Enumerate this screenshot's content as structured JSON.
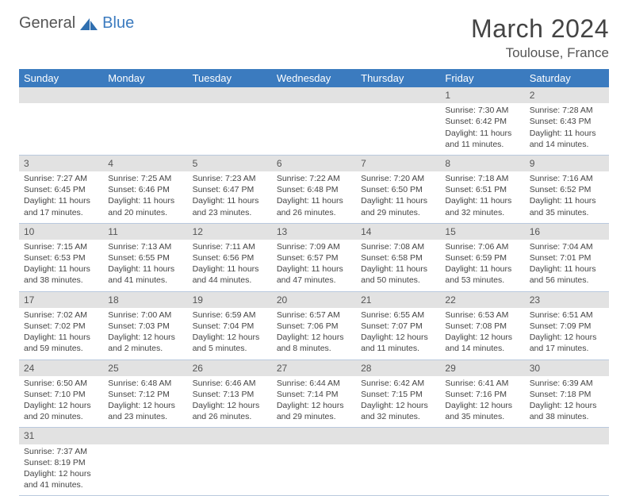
{
  "logo": {
    "text1": "General",
    "text2": "Blue"
  },
  "title": "March 2024",
  "location": "Toulouse, France",
  "day_headers": [
    "Sunday",
    "Monday",
    "Tuesday",
    "Wednesday",
    "Thursday",
    "Friday",
    "Saturday"
  ],
  "colors": {
    "header_bg": "#3b7bbf",
    "header_text": "#ffffff",
    "daynum_bg": "#e2e2e2",
    "row_border": "#b9c9de",
    "text": "#444",
    "page_bg": "#ffffff"
  },
  "typography": {
    "title_fontsize": 32,
    "location_fontsize": 17,
    "header_fontsize": 13,
    "daynum_fontsize": 12,
    "cell_fontsize": 10.5
  },
  "weeks": [
    [
      null,
      null,
      null,
      null,
      null,
      {
        "num": "1",
        "sunrise": "Sunrise: 7:30 AM",
        "sunset": "Sunset: 6:42 PM",
        "dl1": "Daylight: 11 hours",
        "dl2": "and 11 minutes."
      },
      {
        "num": "2",
        "sunrise": "Sunrise: 7:28 AM",
        "sunset": "Sunset: 6:43 PM",
        "dl1": "Daylight: 11 hours",
        "dl2": "and 14 minutes."
      }
    ],
    [
      {
        "num": "3",
        "sunrise": "Sunrise: 7:27 AM",
        "sunset": "Sunset: 6:45 PM",
        "dl1": "Daylight: 11 hours",
        "dl2": "and 17 minutes."
      },
      {
        "num": "4",
        "sunrise": "Sunrise: 7:25 AM",
        "sunset": "Sunset: 6:46 PM",
        "dl1": "Daylight: 11 hours",
        "dl2": "and 20 minutes."
      },
      {
        "num": "5",
        "sunrise": "Sunrise: 7:23 AM",
        "sunset": "Sunset: 6:47 PM",
        "dl1": "Daylight: 11 hours",
        "dl2": "and 23 minutes."
      },
      {
        "num": "6",
        "sunrise": "Sunrise: 7:22 AM",
        "sunset": "Sunset: 6:48 PM",
        "dl1": "Daylight: 11 hours",
        "dl2": "and 26 minutes."
      },
      {
        "num": "7",
        "sunrise": "Sunrise: 7:20 AM",
        "sunset": "Sunset: 6:50 PM",
        "dl1": "Daylight: 11 hours",
        "dl2": "and 29 minutes."
      },
      {
        "num": "8",
        "sunrise": "Sunrise: 7:18 AM",
        "sunset": "Sunset: 6:51 PM",
        "dl1": "Daylight: 11 hours",
        "dl2": "and 32 minutes."
      },
      {
        "num": "9",
        "sunrise": "Sunrise: 7:16 AM",
        "sunset": "Sunset: 6:52 PM",
        "dl1": "Daylight: 11 hours",
        "dl2": "and 35 minutes."
      }
    ],
    [
      {
        "num": "10",
        "sunrise": "Sunrise: 7:15 AM",
        "sunset": "Sunset: 6:53 PM",
        "dl1": "Daylight: 11 hours",
        "dl2": "and 38 minutes."
      },
      {
        "num": "11",
        "sunrise": "Sunrise: 7:13 AM",
        "sunset": "Sunset: 6:55 PM",
        "dl1": "Daylight: 11 hours",
        "dl2": "and 41 minutes."
      },
      {
        "num": "12",
        "sunrise": "Sunrise: 7:11 AM",
        "sunset": "Sunset: 6:56 PM",
        "dl1": "Daylight: 11 hours",
        "dl2": "and 44 minutes."
      },
      {
        "num": "13",
        "sunrise": "Sunrise: 7:09 AM",
        "sunset": "Sunset: 6:57 PM",
        "dl1": "Daylight: 11 hours",
        "dl2": "and 47 minutes."
      },
      {
        "num": "14",
        "sunrise": "Sunrise: 7:08 AM",
        "sunset": "Sunset: 6:58 PM",
        "dl1": "Daylight: 11 hours",
        "dl2": "and 50 minutes."
      },
      {
        "num": "15",
        "sunrise": "Sunrise: 7:06 AM",
        "sunset": "Sunset: 6:59 PM",
        "dl1": "Daylight: 11 hours",
        "dl2": "and 53 minutes."
      },
      {
        "num": "16",
        "sunrise": "Sunrise: 7:04 AM",
        "sunset": "Sunset: 7:01 PM",
        "dl1": "Daylight: 11 hours",
        "dl2": "and 56 minutes."
      }
    ],
    [
      {
        "num": "17",
        "sunrise": "Sunrise: 7:02 AM",
        "sunset": "Sunset: 7:02 PM",
        "dl1": "Daylight: 11 hours",
        "dl2": "and 59 minutes."
      },
      {
        "num": "18",
        "sunrise": "Sunrise: 7:00 AM",
        "sunset": "Sunset: 7:03 PM",
        "dl1": "Daylight: 12 hours",
        "dl2": "and 2 minutes."
      },
      {
        "num": "19",
        "sunrise": "Sunrise: 6:59 AM",
        "sunset": "Sunset: 7:04 PM",
        "dl1": "Daylight: 12 hours",
        "dl2": "and 5 minutes."
      },
      {
        "num": "20",
        "sunrise": "Sunrise: 6:57 AM",
        "sunset": "Sunset: 7:06 PM",
        "dl1": "Daylight: 12 hours",
        "dl2": "and 8 minutes."
      },
      {
        "num": "21",
        "sunrise": "Sunrise: 6:55 AM",
        "sunset": "Sunset: 7:07 PM",
        "dl1": "Daylight: 12 hours",
        "dl2": "and 11 minutes."
      },
      {
        "num": "22",
        "sunrise": "Sunrise: 6:53 AM",
        "sunset": "Sunset: 7:08 PM",
        "dl1": "Daylight: 12 hours",
        "dl2": "and 14 minutes."
      },
      {
        "num": "23",
        "sunrise": "Sunrise: 6:51 AM",
        "sunset": "Sunset: 7:09 PM",
        "dl1": "Daylight: 12 hours",
        "dl2": "and 17 minutes."
      }
    ],
    [
      {
        "num": "24",
        "sunrise": "Sunrise: 6:50 AM",
        "sunset": "Sunset: 7:10 PM",
        "dl1": "Daylight: 12 hours",
        "dl2": "and 20 minutes."
      },
      {
        "num": "25",
        "sunrise": "Sunrise: 6:48 AM",
        "sunset": "Sunset: 7:12 PM",
        "dl1": "Daylight: 12 hours",
        "dl2": "and 23 minutes."
      },
      {
        "num": "26",
        "sunrise": "Sunrise: 6:46 AM",
        "sunset": "Sunset: 7:13 PM",
        "dl1": "Daylight: 12 hours",
        "dl2": "and 26 minutes."
      },
      {
        "num": "27",
        "sunrise": "Sunrise: 6:44 AM",
        "sunset": "Sunset: 7:14 PM",
        "dl1": "Daylight: 12 hours",
        "dl2": "and 29 minutes."
      },
      {
        "num": "28",
        "sunrise": "Sunrise: 6:42 AM",
        "sunset": "Sunset: 7:15 PM",
        "dl1": "Daylight: 12 hours",
        "dl2": "and 32 minutes."
      },
      {
        "num": "29",
        "sunrise": "Sunrise: 6:41 AM",
        "sunset": "Sunset: 7:16 PM",
        "dl1": "Daylight: 12 hours",
        "dl2": "and 35 minutes."
      },
      {
        "num": "30",
        "sunrise": "Sunrise: 6:39 AM",
        "sunset": "Sunset: 7:18 PM",
        "dl1": "Daylight: 12 hours",
        "dl2": "and 38 minutes."
      }
    ],
    [
      {
        "num": "31",
        "sunrise": "Sunrise: 7:37 AM",
        "sunset": "Sunset: 8:19 PM",
        "dl1": "Daylight: 12 hours",
        "dl2": "and 41 minutes."
      },
      null,
      null,
      null,
      null,
      null,
      null
    ]
  ]
}
